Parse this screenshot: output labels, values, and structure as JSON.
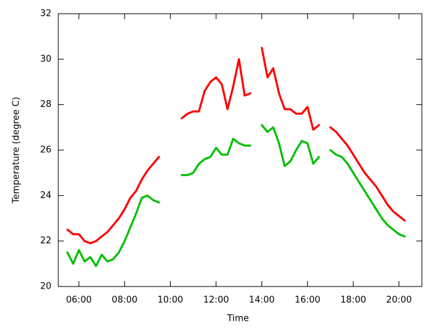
{
  "chart_data": {
    "type": "line",
    "xlabel": "Time",
    "ylabel": "Temperature (degree C)",
    "x": [
      5.5,
      5.75,
      6.0,
      6.25,
      6.5,
      6.75,
      7.0,
      7.25,
      7.5,
      7.75,
      8.0,
      8.25,
      8.5,
      8.75,
      9.0,
      9.25,
      9.5,
      9.75,
      10.0,
      10.25,
      10.5,
      10.75,
      11.0,
      11.25,
      11.5,
      11.75,
      12.0,
      12.25,
      12.5,
      12.75,
      13.0,
      13.25,
      13.5,
      13.75,
      14.0,
      14.25,
      14.5,
      14.75,
      15.0,
      15.25,
      15.5,
      15.75,
      16.0,
      16.25,
      16.5,
      16.75,
      17.0,
      17.25,
      17.5,
      17.75,
      18.0,
      18.25,
      18.5,
      18.75,
      19.0,
      19.25,
      19.5,
      19.75,
      20.0,
      20.25
    ],
    "series": [
      {
        "color": "#ff0000",
        "values": [
          22.5,
          22.3,
          22.3,
          22.0,
          21.9,
          22.0,
          22.2,
          22.4,
          22.7,
          23.0,
          23.4,
          23.9,
          24.2,
          24.7,
          25.1,
          25.4,
          25.7,
          null,
          null,
          null,
          27.4,
          27.6,
          27.7,
          27.7,
          28.6,
          29.0,
          29.2,
          28.9,
          27.8,
          28.8,
          30.0,
          28.4,
          28.5,
          null,
          30.5,
          29.2,
          29.6,
          28.5,
          27.8,
          27.8,
          27.6,
          27.6,
          27.9,
          26.9,
          27.1,
          null,
          27.0,
          26.8,
          26.5,
          26.2,
          25.8,
          25.4,
          25.0,
          24.7,
          24.4,
          24.0,
          23.6,
          23.3,
          23.1,
          22.9
        ]
      },
      {
        "color": "#00c000",
        "values": [
          21.5,
          21.0,
          21.6,
          21.1,
          21.3,
          20.9,
          21.4,
          21.1,
          21.2,
          21.5,
          22.0,
          22.6,
          23.2,
          23.9,
          24.0,
          23.8,
          23.7,
          null,
          null,
          null,
          24.9,
          24.9,
          25.0,
          25.4,
          25.6,
          25.7,
          26.1,
          25.8,
          25.8,
          26.5,
          26.3,
          26.2,
          26.2,
          null,
          27.1,
          26.8,
          27.0,
          26.3,
          25.3,
          25.5,
          26.0,
          26.4,
          26.3,
          25.4,
          25.7,
          null,
          26.0,
          25.8,
          25.7,
          25.4,
          25.0,
          24.6,
          24.2,
          23.8,
          23.4,
          23.0,
          22.7,
          22.5,
          22.3,
          22.2
        ]
      }
    ],
    "xlim": [
      5.1,
      21.0
    ],
    "xticks": [
      {
        "value": 6,
        "label": "06:00"
      },
      {
        "value": 8,
        "label": "08:00"
      },
      {
        "value": 10,
        "label": "10:00"
      },
      {
        "value": 12,
        "label": "12:00"
      },
      {
        "value": 14,
        "label": "14:00"
      },
      {
        "value": 16,
        "label": "16:00"
      },
      {
        "value": 18,
        "label": "18:00"
      },
      {
        "value": 20,
        "label": "20:00"
      }
    ],
    "ylim": [
      20,
      32
    ],
    "yticks": [
      20,
      22,
      24,
      26,
      28,
      30,
      32
    ],
    "grid": false
  }
}
